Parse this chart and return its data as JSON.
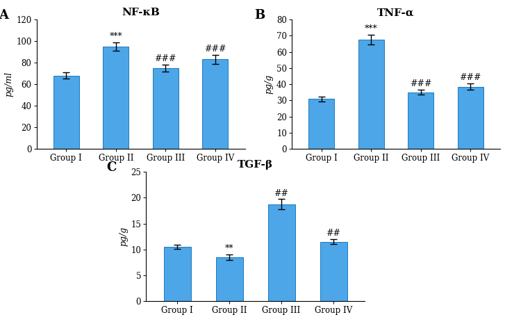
{
  "panel_A": {
    "title": "NF-κB",
    "ylabel": "pg/ml",
    "groups": [
      "Group I",
      "Group II",
      "Group III",
      "Group IV"
    ],
    "values": [
      68,
      95,
      75,
      83
    ],
    "errors": [
      3,
      4,
      3,
      4
    ],
    "annotations": [
      "",
      "***",
      "###",
      "###"
    ],
    "ylim": [
      0,
      120
    ],
    "yticks": [
      0,
      20,
      40,
      60,
      80,
      100,
      120
    ],
    "panel_label": "A"
  },
  "panel_B": {
    "title": "TNF-α",
    "ylabel": "pg/g",
    "groups": [
      "Group I",
      "Group II",
      "Group III",
      "Group IV"
    ],
    "values": [
      31,
      67.5,
      35,
      38.5
    ],
    "errors": [
      1.5,
      3,
      1.5,
      2
    ],
    "annotations": [
      "",
      "***",
      "###",
      "###"
    ],
    "ylim": [
      0,
      80
    ],
    "yticks": [
      0,
      10,
      20,
      30,
      40,
      50,
      60,
      70,
      80
    ],
    "panel_label": "B"
  },
  "panel_C": {
    "title": "TGF-β",
    "ylabel": "pg/g",
    "groups": [
      "Group I",
      "Group II",
      "Group III",
      "Group IV"
    ],
    "values": [
      10.5,
      8.5,
      18.7,
      11.5
    ],
    "errors": [
      0.4,
      0.6,
      1.0,
      0.5
    ],
    "annotations": [
      "",
      "**",
      "##",
      "##"
    ],
    "ylim": [
      0,
      25
    ],
    "yticks": [
      0,
      5,
      10,
      15,
      20,
      25
    ],
    "panel_label": "C"
  },
  "bar_color": "#4da6e8",
  "bar_edgecolor": "#1a7abf",
  "error_color": "black",
  "annotation_color": "black",
  "background_color": "white",
  "title_fontsize": 11,
  "label_fontsize": 9,
  "tick_fontsize": 8.5,
  "annot_fontsize": 9,
  "panel_label_fontsize": 13
}
